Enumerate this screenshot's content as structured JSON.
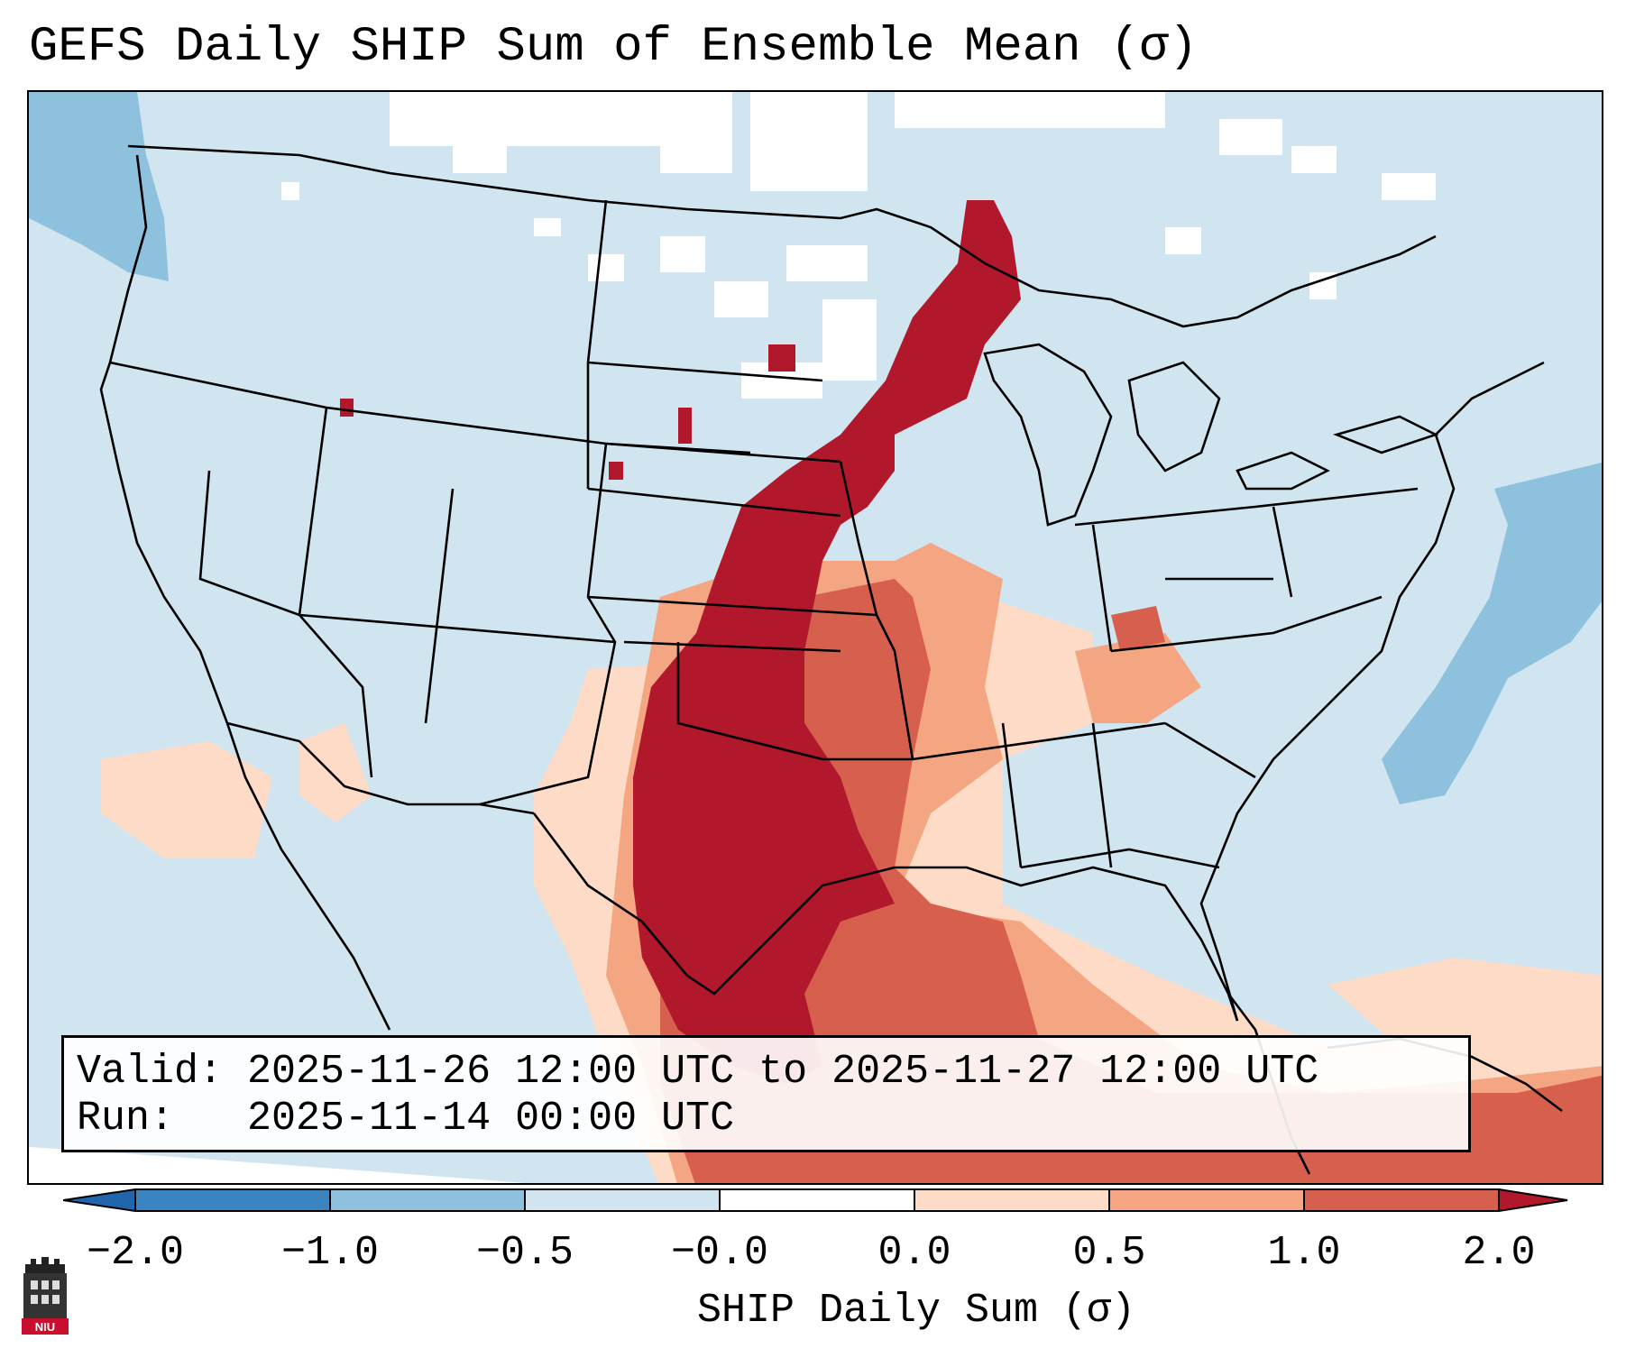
{
  "title": "GEFS Daily SHIP Sum of Ensemble Mean (σ)",
  "info": {
    "valid_label": "Valid:",
    "valid_value": "2025-11-26 12:00 UTC to 2025-11-27 12:00 UTC",
    "run_label": "Run:",
    "run_value": "2025-11-14 00:00 UTC"
  },
  "colorbar": {
    "label": "SHIP Daily Sum (σ)",
    "ticks": [
      "−2.0",
      "−1.0",
      "−0.5",
      "−0.0",
      "0.0",
      "0.5",
      "1.0",
      "2.0"
    ],
    "colors": [
      "#3a84c0",
      "#8dc1dd",
      "#d1e5f0",
      "#ffffff",
      "#fddbc7",
      "#f4a582",
      "#d6604d",
      "#b2182b"
    ]
  },
  "map": {
    "regions": "Contiguous United States, southern Canada, northern Mexico, Gulf of Mexico",
    "max_region": "Southern Plains to Upper Midwest"
  },
  "logo_text": "NIU"
}
